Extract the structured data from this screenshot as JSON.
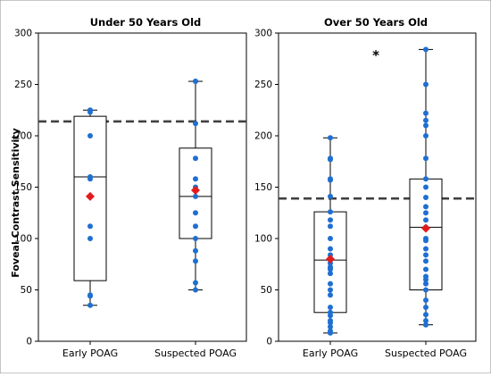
{
  "chart_data": {
    "type": "box",
    "ylabel": "Foveal Contrast Sensitivity",
    "yticks": [
      0,
      50,
      100,
      150,
      200,
      250,
      300
    ],
    "ylim": [
      0,
      300
    ],
    "marker_colors": {
      "points": "#1f6fd1",
      "mean": "#e31a1c"
    },
    "panels": [
      {
        "title": "Under 50 Years Old",
        "annotation": "",
        "reference_line": 214,
        "groups": [
          {
            "category": "Early POAG",
            "box": {
              "q1": 59,
              "median": 160,
              "q3": 219,
              "whisker_low": 35,
              "whisker_high": 225
            },
            "mean": 141,
            "points": [
              225,
              223,
              200,
              160,
              158,
              112,
              100,
              45,
              44,
              35
            ]
          },
          {
            "category": "Suspected POAG",
            "box": {
              "q1": 100,
              "median": 141,
              "q3": 188,
              "whisker_low": 50,
              "whisker_high": 253
            },
            "mean": 147,
            "points": [
              253,
              253,
              212,
              178,
              158,
              150,
              141,
              125,
              112,
              100,
              88,
              78,
              57,
              50
            ]
          }
        ]
      },
      {
        "title": "Over 50 Years Old",
        "annotation": "*",
        "reference_line": 139,
        "groups": [
          {
            "category": "Early POAG",
            "box": {
              "q1": 28,
              "median": 79,
              "q3": 126,
              "whisker_low": 8,
              "whisker_high": 198
            },
            "mean": 80,
            "points": [
              198,
              178,
              177,
              158,
              157,
              141,
              126,
              118,
              112,
              100,
              90,
              84,
              79,
              76,
              72,
              72,
              70,
              66,
              56,
              50,
              45,
              33,
              28,
              25,
              20,
              18,
              14,
              10,
              8
            ]
          },
          {
            "category": "Suspected POAG",
            "box": {
              "q1": 50,
              "median": 111,
              "q3": 158,
              "whisker_low": 16,
              "whisker_high": 284
            },
            "mean": 110,
            "points": [
              284,
              250,
              222,
              215,
              210,
              200,
              178,
              158,
              150,
              140,
              131,
              125,
              118,
              111,
              100,
              98,
              90,
              84,
              78,
              70,
              63,
              60,
              56,
              50,
              40,
              33,
              26,
              20,
              16
            ]
          }
        ]
      }
    ]
  }
}
